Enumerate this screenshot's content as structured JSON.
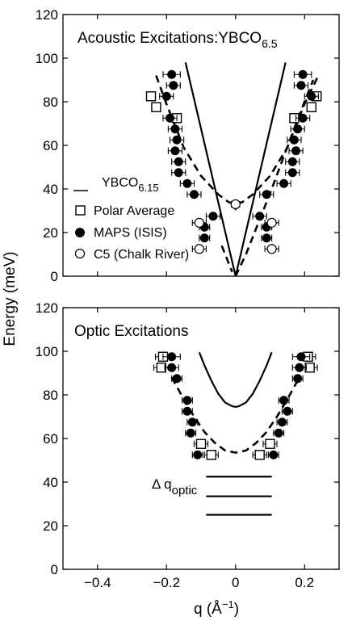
{
  "figure": {
    "ylabel": "Energy (meV)",
    "xlabel_main": "q (",
    "xlabel_unit": "Å",
    "xlabel_exp": "−1",
    "xlabel_close": ")"
  },
  "chart_data": [
    {
      "type": "scatter",
      "title": "Acoustic Excitations:YBCO",
      "title_sub": "6.5",
      "xlim": [
        -0.5,
        0.3
      ],
      "ylim": [
        0,
        120
      ],
      "xticks": [],
      "yticks": [
        "0",
        "20",
        "40",
        "60",
        "80",
        "100",
        "120"
      ],
      "legend_position": "left",
      "legend": [
        {
          "marker": "line",
          "label": "YBCO",
          "label_sub": "6.15"
        },
        {
          "marker": "square-open",
          "label": "Polar Average"
        },
        {
          "marker": "circle-filled",
          "label": "MAPS (ISIS)"
        },
        {
          "marker": "circle-open",
          "label": "C5 (Chalk River)"
        }
      ],
      "series": [
        {
          "name": "Polar Average",
          "marker": "square-open",
          "points": [
            {
              "x": -0.245,
              "y": 82.5,
              "xerr": 0.008
            },
            {
              "x": -0.23,
              "y": 77.5,
              "xerr": 0.008
            },
            {
              "x": -0.17,
              "y": 72.5,
              "xerr": 0.008
            },
            {
              "x": 0.235,
              "y": 82.5,
              "xerr": 0.008
            },
            {
              "x": 0.22,
              "y": 77.5,
              "xerr": 0.008
            },
            {
              "x": 0.17,
              "y": 72.5,
              "xerr": 0.008
            }
          ]
        },
        {
          "name": "MAPS (ISIS)",
          "marker": "circle-filled",
          "points": [
            {
              "x": -0.185,
              "y": 92.5,
              "xerr": 0.025
            },
            {
              "x": -0.18,
              "y": 87.5,
              "xerr": 0.02
            },
            {
              "x": -0.2,
              "y": 82.5,
              "xerr": 0.02
            },
            {
              "x": -0.19,
              "y": 72.5,
              "xerr": 0.02
            },
            {
              "x": -0.175,
              "y": 67.5,
              "xerr": 0.02
            },
            {
              "x": -0.17,
              "y": 62.5,
              "xerr": 0.02
            },
            {
              "x": -0.175,
              "y": 57.5,
              "xerr": 0.02
            },
            {
              "x": -0.165,
              "y": 52.5,
              "xerr": 0.02
            },
            {
              "x": -0.165,
              "y": 47.5,
              "xerr": 0.02
            },
            {
              "x": -0.14,
              "y": 42.5,
              "xerr": 0.02
            },
            {
              "x": -0.12,
              "y": 37.5,
              "xerr": 0.02
            },
            {
              "x": -0.065,
              "y": 27.5,
              "xerr": 0.02
            },
            {
              "x": -0.09,
              "y": 22.5,
              "xerr": 0.015
            },
            {
              "x": -0.09,
              "y": 17.5,
              "xerr": 0.015
            },
            {
              "x": 0.195,
              "y": 92.5,
              "xerr": 0.025
            },
            {
              "x": 0.19,
              "y": 87.5,
              "xerr": 0.02
            },
            {
              "x": 0.22,
              "y": 82.5,
              "xerr": 0.02
            },
            {
              "x": 0.195,
              "y": 72.5,
              "xerr": 0.02
            },
            {
              "x": 0.18,
              "y": 67.5,
              "xerr": 0.02
            },
            {
              "x": 0.17,
              "y": 62.5,
              "xerr": 0.02
            },
            {
              "x": 0.175,
              "y": 57.5,
              "xerr": 0.02
            },
            {
              "x": 0.165,
              "y": 52.5,
              "xerr": 0.02
            },
            {
              "x": 0.165,
              "y": 47.5,
              "xerr": 0.02
            },
            {
              "x": 0.14,
              "y": 42.5,
              "xerr": 0.02
            },
            {
              "x": 0.09,
              "y": 37.5,
              "xerr": 0.02
            },
            {
              "x": 0.07,
              "y": 27.5,
              "xerr": 0.02
            },
            {
              "x": 0.09,
              "y": 22.5,
              "xerr": 0.015
            },
            {
              "x": 0.09,
              "y": 17.5,
              "xerr": 0.015
            }
          ]
        },
        {
          "name": "C5 (Chalk River)",
          "marker": "circle-open",
          "points": [
            {
              "x": 0.0,
              "y": 33,
              "xerr": 0.012
            },
            {
              "x": -0.105,
              "y": 24.5,
              "xerr": 0.02
            },
            {
              "x": -0.105,
              "y": 12.5,
              "xerr": 0.02
            },
            {
              "x": 0.105,
              "y": 24.5,
              "xerr": 0.02
            },
            {
              "x": 0.105,
              "y": 12.5,
              "xerr": 0.02
            }
          ]
        }
      ],
      "curves": [
        {
          "style": "solid",
          "x": [
            -0.145,
            0.0,
            0.145
          ],
          "y": [
            98,
            0,
            98
          ]
        },
        {
          "style": "dashed",
          "x": [
            -0.23,
            -0.2,
            -0.15,
            -0.1,
            -0.05,
            -0.02,
            0.0,
            0.02,
            0.05,
            0.1,
            0.15,
            0.2,
            0.24
          ],
          "y": [
            92,
            79,
            59,
            46,
            37.5,
            34,
            33,
            34,
            37.5,
            46,
            59,
            79,
            92
          ]
        },
        {
          "style": "dashed",
          "x": [
            -0.04,
            -0.01
          ],
          "y": [
            14,
            2
          ]
        },
        {
          "style": "dashed",
          "x": [
            0.0,
            0.03,
            0.06,
            0.1,
            0.14,
            0.18,
            0.225
          ],
          "y": [
            0,
            10,
            22,
            38,
            55,
            72,
            90
          ]
        },
        {
          "style": "thin",
          "x": [
            -0.01,
            0.0,
            0.01
          ],
          "y": [
            33,
            30.5,
            33
          ]
        }
      ]
    },
    {
      "type": "scatter",
      "title": "Optic Excitations",
      "xlim": [
        -0.5,
        0.3
      ],
      "ylim": [
        0,
        120
      ],
      "xticks": [
        "−0.4",
        "−0.2",
        "0",
        "0.2"
      ],
      "yticks": [
        "0",
        "20",
        "40",
        "60",
        "80",
        "100",
        "120"
      ],
      "annotation": {
        "text": "Δ q",
        "text_sub": "optic"
      },
      "hlines": [
        {
          "y": 42.5,
          "x0": -0.085,
          "x1": 0.105
        },
        {
          "y": 33.5,
          "x0": -0.085,
          "x1": 0.105
        },
        {
          "y": 25.0,
          "x0": -0.085,
          "x1": 0.105
        }
      ],
      "series": [
        {
          "name": "Polar Average",
          "marker": "square-open",
          "points": [
            {
              "x": -0.21,
              "y": 97.5,
              "xerr": 0.022
            },
            {
              "x": -0.215,
              "y": 92.5,
              "xerr": 0.022
            },
            {
              "x": -0.1,
              "y": 57.5,
              "xerr": 0.02
            },
            {
              "x": -0.07,
              "y": 52.5,
              "xerr": 0.02
            },
            {
              "x": 0.21,
              "y": 97.5,
              "xerr": 0.022
            },
            {
              "x": 0.215,
              "y": 92.5,
              "xerr": 0.022
            },
            {
              "x": 0.1,
              "y": 57.5,
              "xerr": 0.02
            },
            {
              "x": 0.07,
              "y": 52.5,
              "xerr": 0.02
            }
          ]
        },
        {
          "name": "MAPS (ISIS)",
          "marker": "circle-filled",
          "points": [
            {
              "x": -0.185,
              "y": 97.5,
              "xerr": 0.025
            },
            {
              "x": -0.185,
              "y": 92.5,
              "xerr": 0.02
            },
            {
              "x": -0.17,
              "y": 87.5,
              "xerr": 0.015
            },
            {
              "x": -0.14,
              "y": 77.5,
              "xerr": 0.015
            },
            {
              "x": -0.14,
              "y": 72.5,
              "xerr": 0.015
            },
            {
              "x": -0.125,
              "y": 67.5,
              "xerr": 0.015
            },
            {
              "x": -0.13,
              "y": 62.5,
              "xerr": 0.015
            },
            {
              "x": -0.11,
              "y": 52.5,
              "xerr": 0.015
            },
            {
              "x": 0.19,
              "y": 97.5,
              "xerr": 0.025
            },
            {
              "x": 0.185,
              "y": 92.5,
              "xerr": 0.02
            },
            {
              "x": 0.18,
              "y": 87.5,
              "xerr": 0.015
            },
            {
              "x": 0.14,
              "y": 77.5,
              "xerr": 0.015
            },
            {
              "x": 0.15,
              "y": 72.5,
              "xerr": 0.015
            },
            {
              "x": 0.135,
              "y": 67.5,
              "xerr": 0.015
            },
            {
              "x": 0.125,
              "y": 62.5,
              "xerr": 0.015
            },
            {
              "x": 0.11,
              "y": 52.5,
              "xerr": 0.015
            }
          ]
        }
      ],
      "curves": [
        {
          "style": "solid",
          "x": [
            -0.105,
            -0.09,
            -0.07,
            -0.05,
            -0.03,
            -0.01,
            0.0,
            0.01,
            0.03,
            0.05,
            0.07,
            0.09,
            0.105
          ],
          "y": [
            99.5,
            93.5,
            86.5,
            80.5,
            76.5,
            74.8,
            74.5,
            74.8,
            76.5,
            80.5,
            86.5,
            93.5,
            99.5
          ]
        },
        {
          "style": "dashed",
          "x": [
            -0.185,
            -0.15,
            -0.12,
            -0.09,
            -0.06,
            -0.03,
            0.0,
            0.03,
            0.06,
            0.09,
            0.12,
            0.15,
            0.185
          ],
          "y": [
            88,
            78,
            70,
            63,
            58,
            54.5,
            53.5,
            54.5,
            58,
            63,
            70,
            78,
            88
          ]
        }
      ]
    }
  ]
}
